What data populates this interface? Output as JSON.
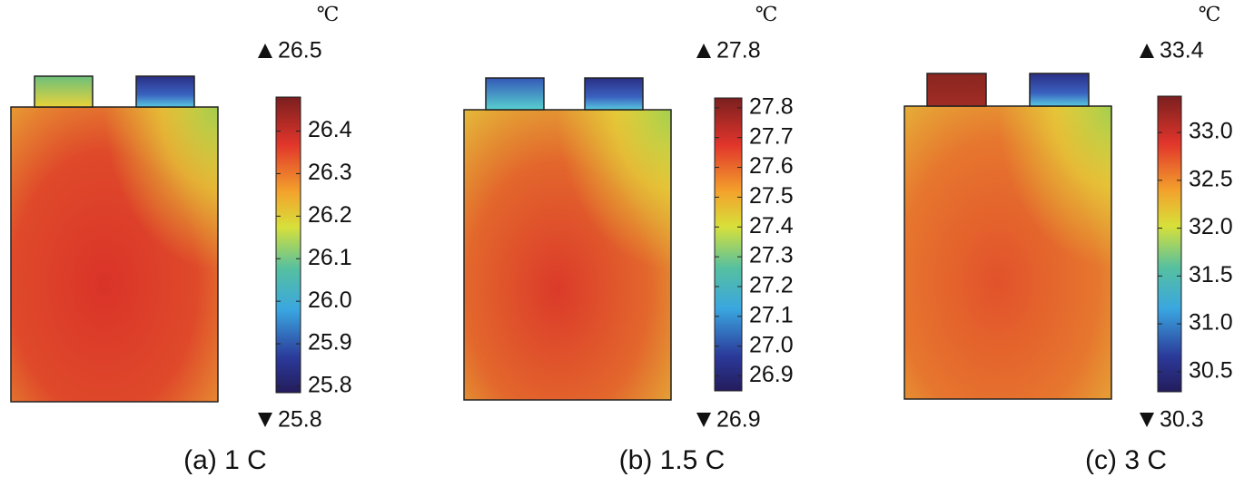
{
  "panels": [
    {
      "caption": "(a) 1 C",
      "unit": "℃",
      "max": 26.5,
      "min": 25.8,
      "colorbar_lim": [
        25.785,
        26.48
      ],
      "ticks": [
        26.4,
        26.3,
        26.2,
        26.1,
        {
          "value": 26,
          "label": "26.0"
        },
        25.9,
        25.8
      ]
    },
    {
      "caption": "(b) 1.5 C",
      "unit": "℃",
      "max": 27.8,
      "min": 26.9,
      "colorbar_lim": [
        26.85,
        27.833
      ],
      "ticks": [
        27.8,
        27.7,
        27.6,
        27.5,
        27.4,
        27.3,
        27.2,
        27.1,
        {
          "value": 27,
          "label": "27.0"
        },
        26.9
      ]
    },
    {
      "caption": "(c) 3 C",
      "unit": "℃",
      "max": 33.4,
      "min": 30.3,
      "colorbar_lim": [
        30.29,
        33.38
      ],
      "ticks": [
        {
          "value": 33,
          "label": "33.0"
        },
        32.5,
        {
          "value": 32,
          "label": "32.0"
        },
        31.5,
        {
          "value": 31,
          "label": "31.0"
        },
        30.5
      ]
    }
  ]
}
